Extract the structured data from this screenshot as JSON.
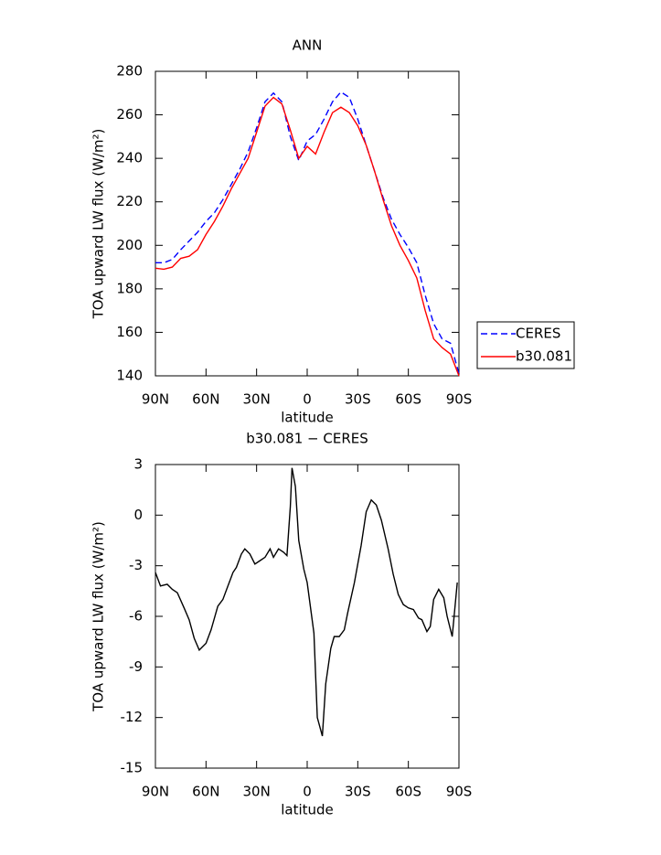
{
  "chart_data": [
    {
      "type": "line",
      "title": "ANN",
      "xlabel": "latitude",
      "ylabel": "TOA upward LW flux (W/m²)",
      "x": [
        90,
        85,
        80,
        75,
        70,
        65,
        60,
        55,
        50,
        45,
        40,
        35,
        30,
        25,
        20,
        15,
        10,
        5,
        0,
        -5,
        -10,
        -15,
        -20,
        -25,
        -30,
        -35,
        -40,
        -45,
        -50,
        -55,
        -60,
        -65,
        -70,
        -75,
        -80,
        -85,
        -90
      ],
      "series": [
        {
          "name": "CERES",
          "color": "#0000ff",
          "linestyle": "dashed",
          "values": [
            192,
            192,
            193.5,
            198,
            202,
            206,
            211,
            215,
            221,
            228,
            235,
            243,
            254,
            266,
            270,
            266,
            250,
            239,
            248,
            251,
            258,
            266,
            270.5,
            268,
            258,
            246,
            234,
            222,
            212,
            205,
            199,
            192,
            177,
            164,
            157,
            155,
            141
          ]
        },
        {
          "name": "b30.081",
          "color": "#ff0000",
          "linestyle": "solid",
          "values": [
            189.5,
            189,
            190,
            194,
            195,
            198,
            205,
            211,
            218,
            226,
            233,
            240,
            252,
            264,
            268,
            265,
            253,
            240,
            245.5,
            242,
            252,
            261,
            263.5,
            261,
            255,
            246,
            234,
            221,
            209,
            200,
            193,
            185,
            170,
            157,
            153,
            150,
            140
          ]
        }
      ],
      "xlim": [
        90,
        -90
      ],
      "xticks": [
        {
          "value": 90,
          "label": "90N"
        },
        {
          "value": 60,
          "label": "60N"
        },
        {
          "value": 30,
          "label": "30N"
        },
        0,
        {
          "value": -30,
          "label": "30S"
        },
        {
          "value": -60,
          "label": "60S"
        },
        {
          "value": -90,
          "label": "90S"
        }
      ],
      "ylim": [
        140,
        280
      ],
      "yticks": [
        140,
        160,
        180,
        200,
        220,
        240,
        260,
        280
      ],
      "legend": "right"
    },
    {
      "type": "line",
      "title": "b30.081 − CERES",
      "xlabel": "latitude",
      "ylabel": "TOA upward LW flux (W/m²)",
      "x": [
        90,
        87,
        83,
        80,
        77,
        73,
        70,
        67,
        64,
        60,
        57,
        53,
        50,
        47,
        44,
        42,
        39,
        37,
        34,
        31,
        28,
        25,
        22,
        20,
        17,
        14,
        12,
        10,
        9,
        7,
        5,
        2,
        0,
        -4,
        -6,
        -9,
        -11,
        -14,
        -16,
        -19,
        -22,
        -24,
        -28,
        -32,
        -35,
        -38,
        -41,
        -44,
        -48,
        -51,
        -54,
        -57,
        -60,
        -63,
        -66,
        -68,
        -71,
        -73,
        -75,
        -78,
        -81,
        -83,
        -86,
        -89
      ],
      "values": [
        -3.4,
        -4.2,
        -4.1,
        -4.4,
        -4.6,
        -5.5,
        -6.2,
        -7.3,
        -8.0,
        -7.6,
        -6.8,
        -5.4,
        -5.0,
        -4.2,
        -3.4,
        -3.1,
        -2.3,
        -2.0,
        -2.3,
        -2.9,
        -2.7,
        -2.5,
        -2.0,
        -2.5,
        -2.0,
        -2.2,
        -2.4,
        0.5,
        2.8,
        1.7,
        -1.5,
        -3.2,
        -4.0,
        -7.0,
        -12.0,
        -13.1,
        -10.0,
        -7.9,
        -7.2,
        -7.2,
        -6.8,
        -5.8,
        -4.0,
        -1.8,
        0.2,
        0.9,
        0.6,
        -0.3,
        -2.0,
        -3.5,
        -4.7,
        -5.3,
        -5.5,
        -5.6,
        -6.1,
        -6.2,
        -6.9,
        -6.6,
        -5.0,
        -4.4,
        -4.9,
        -6.0,
        -7.2,
        -4.0
      ],
      "color": "#000000",
      "xlim": [
        90,
        -90
      ],
      "xticks": [
        {
          "value": 90,
          "label": "90N"
        },
        {
          "value": 60,
          "label": "60N"
        },
        {
          "value": 30,
          "label": "30N"
        },
        0,
        {
          "value": -30,
          "label": "30S"
        },
        {
          "value": -60,
          "label": "60S"
        },
        {
          "value": -90,
          "label": "90S"
        }
      ],
      "ylim": [
        -15,
        3
      ],
      "yticks": [
        -15,
        -12,
        -9,
        -6,
        -3,
        0,
        3
      ]
    }
  ]
}
